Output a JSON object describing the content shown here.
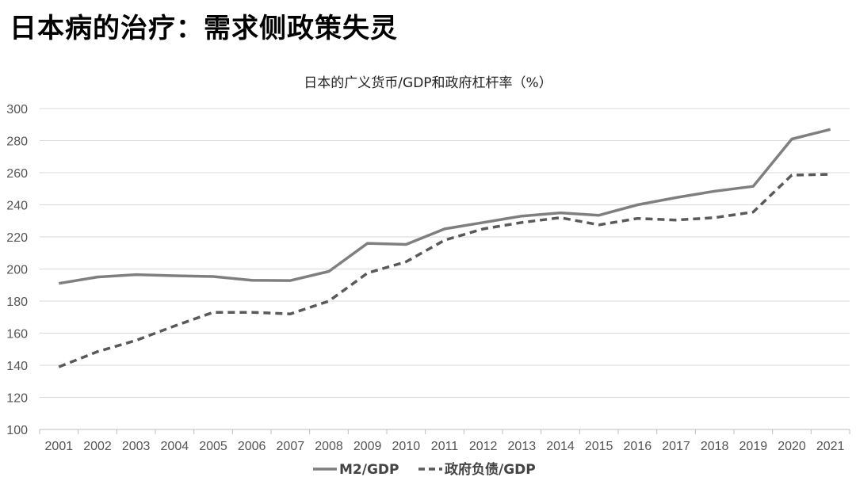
{
  "page": {
    "title": "日本病的治疗：需求侧政策失灵"
  },
  "chart_data": {
    "type": "line",
    "title": "日本的广义货币/GDP和政府杠杆率（%）",
    "xlabel": "",
    "ylabel": "",
    "x": [
      "2001",
      "2002",
      "2003",
      "2004",
      "2005",
      "2006",
      "2007",
      "2008",
      "2009",
      "2010",
      "2011",
      "2012",
      "2013",
      "2014",
      "2015",
      "2016",
      "2017",
      "2018",
      "2019",
      "2020",
      "2021"
    ],
    "ylim": [
      100,
      300
    ],
    "yticks": [
      100,
      120,
      140,
      160,
      180,
      200,
      220,
      240,
      260,
      280,
      300
    ],
    "grid": true,
    "legend_position": "bottom",
    "series": [
      {
        "name": "M2/GDP",
        "style": "solid",
        "color": "#7f7f7f",
        "values": [
          191,
          195,
          196.5,
          195.8,
          195.3,
          193,
          192.8,
          198.5,
          216,
          215.3,
          225,
          229,
          233,
          235,
          233.5,
          240,
          244.5,
          248.5,
          251.5,
          281,
          287
        ]
      },
      {
        "name": "政府负债/GDP",
        "style": "dashed",
        "color": "#595959",
        "values": [
          139,
          148.5,
          155.5,
          164.5,
          173,
          173,
          172,
          180,
          197.5,
          204.5,
          218,
          225,
          229,
          232,
          227.5,
          231.5,
          230.5,
          232,
          235.5,
          258.5,
          259
        ]
      }
    ]
  }
}
